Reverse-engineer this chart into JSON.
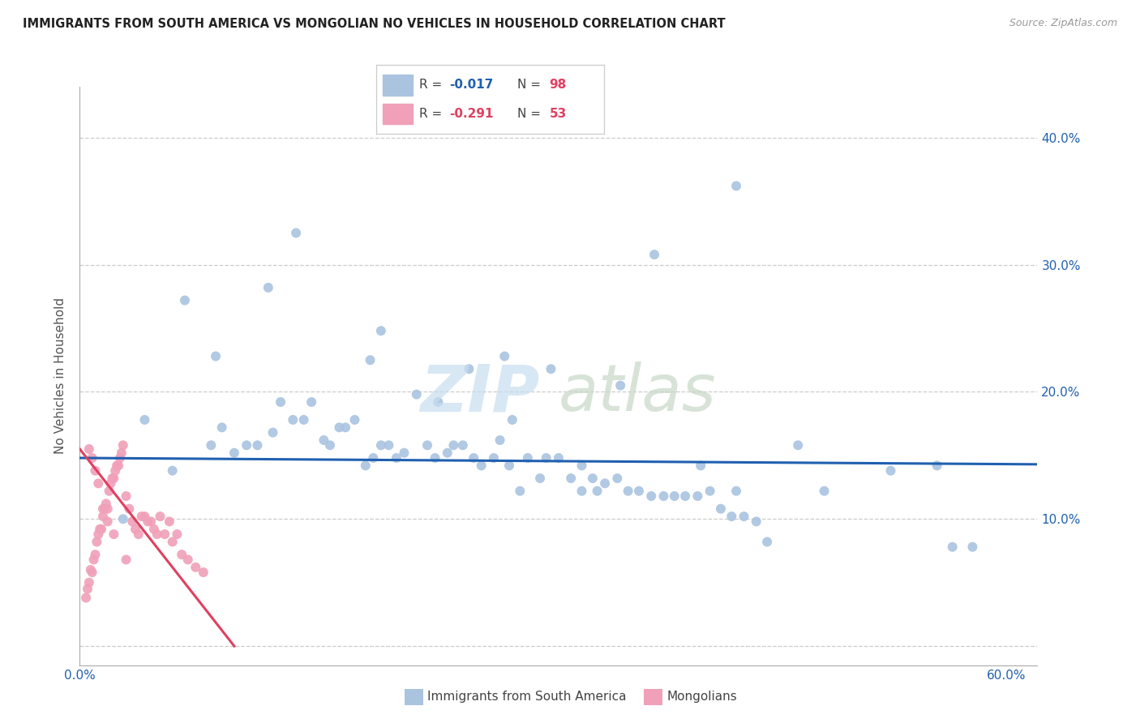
{
  "title": "IMMIGRANTS FROM SOUTH AMERICA VS MONGOLIAN NO VEHICLES IN HOUSEHOLD CORRELATION CHART",
  "source": "Source: ZipAtlas.com",
  "ylabel": "No Vehicles in Household",
  "yticks": [
    0.0,
    0.1,
    0.2,
    0.3,
    0.4
  ],
  "ytick_labels": [
    "",
    "10.0%",
    "20.0%",
    "30.0%",
    "40.0%"
  ],
  "xticks": [
    0.0,
    0.1,
    0.2,
    0.3,
    0.4,
    0.5,
    0.6
  ],
  "xtick_labels": [
    "0.0%",
    "",
    "",
    "",
    "",
    "",
    "60.0%"
  ],
  "blue_color": "#aac4e0",
  "pink_color": "#f0a0b8",
  "blue_line_color": "#2060b0",
  "pink_line_color": "#e04060",
  "xlim": [
    0.0,
    0.62
  ],
  "ylim": [
    -0.015,
    0.44
  ],
  "blue_trend_x": [
    0.0,
    0.62
  ],
  "blue_trend_y": [
    0.148,
    0.143
  ],
  "pink_trend_x": [
    0.0,
    0.1
  ],
  "pink_trend_y": [
    0.155,
    0.0
  ],
  "marker_size": 75,
  "blue_scatter_x": [
    0.028,
    0.06,
    0.042,
    0.085,
    0.092,
    0.1,
    0.108,
    0.115,
    0.125,
    0.13,
    0.138,
    0.145,
    0.15,
    0.158,
    0.162,
    0.168,
    0.172,
    0.178,
    0.185,
    0.19,
    0.195,
    0.2,
    0.205,
    0.21,
    0.218,
    0.225,
    0.23,
    0.238,
    0.242,
    0.248,
    0.255,
    0.26,
    0.268,
    0.272,
    0.278,
    0.285,
    0.29,
    0.298,
    0.302,
    0.31,
    0.318,
    0.325,
    0.332,
    0.34,
    0.348,
    0.355,
    0.362,
    0.37,
    0.378,
    0.385,
    0.392,
    0.4,
    0.408,
    0.415,
    0.422,
    0.43,
    0.438,
    0.445,
    0.14,
    0.068,
    0.122,
    0.188,
    0.088,
    0.252,
    0.305,
    0.325,
    0.372,
    0.425,
    0.465,
    0.525,
    0.555,
    0.28,
    0.232,
    0.402,
    0.335,
    0.425,
    0.482,
    0.195,
    0.35,
    0.275,
    0.565,
    0.578
  ],
  "blue_scatter_y": [
    0.1,
    0.138,
    0.178,
    0.158,
    0.172,
    0.152,
    0.158,
    0.158,
    0.168,
    0.192,
    0.178,
    0.178,
    0.192,
    0.162,
    0.158,
    0.172,
    0.172,
    0.178,
    0.142,
    0.148,
    0.158,
    0.158,
    0.148,
    0.152,
    0.198,
    0.158,
    0.148,
    0.152,
    0.158,
    0.158,
    0.148,
    0.142,
    0.148,
    0.162,
    0.142,
    0.122,
    0.148,
    0.132,
    0.148,
    0.148,
    0.132,
    0.122,
    0.132,
    0.128,
    0.132,
    0.122,
    0.122,
    0.118,
    0.118,
    0.118,
    0.118,
    0.118,
    0.122,
    0.108,
    0.102,
    0.102,
    0.098,
    0.082,
    0.325,
    0.272,
    0.282,
    0.225,
    0.228,
    0.218,
    0.218,
    0.142,
    0.308,
    0.362,
    0.158,
    0.138,
    0.142,
    0.178,
    0.192,
    0.142,
    0.122,
    0.122,
    0.122,
    0.248,
    0.205,
    0.228,
    0.078,
    0.078
  ],
  "pink_scatter_x": [
    0.004,
    0.005,
    0.006,
    0.007,
    0.008,
    0.009,
    0.01,
    0.011,
    0.012,
    0.013,
    0.014,
    0.015,
    0.016,
    0.017,
    0.018,
    0.019,
    0.02,
    0.021,
    0.022,
    0.023,
    0.024,
    0.025,
    0.026,
    0.027,
    0.028,
    0.03,
    0.032,
    0.034,
    0.036,
    0.038,
    0.04,
    0.042,
    0.044,
    0.046,
    0.048,
    0.05,
    0.052,
    0.055,
    0.058,
    0.06,
    0.063,
    0.066,
    0.07,
    0.075,
    0.08,
    0.006,
    0.008,
    0.01,
    0.012,
    0.015,
    0.018,
    0.022,
    0.03
  ],
  "pink_scatter_y": [
    0.038,
    0.045,
    0.05,
    0.06,
    0.058,
    0.068,
    0.072,
    0.082,
    0.088,
    0.092,
    0.092,
    0.102,
    0.108,
    0.112,
    0.108,
    0.122,
    0.128,
    0.132,
    0.132,
    0.138,
    0.142,
    0.142,
    0.148,
    0.152,
    0.158,
    0.118,
    0.108,
    0.098,
    0.092,
    0.088,
    0.102,
    0.102,
    0.098,
    0.098,
    0.092,
    0.088,
    0.102,
    0.088,
    0.098,
    0.082,
    0.088,
    0.072,
    0.068,
    0.062,
    0.058,
    0.155,
    0.148,
    0.138,
    0.128,
    0.108,
    0.098,
    0.088,
    0.068
  ]
}
